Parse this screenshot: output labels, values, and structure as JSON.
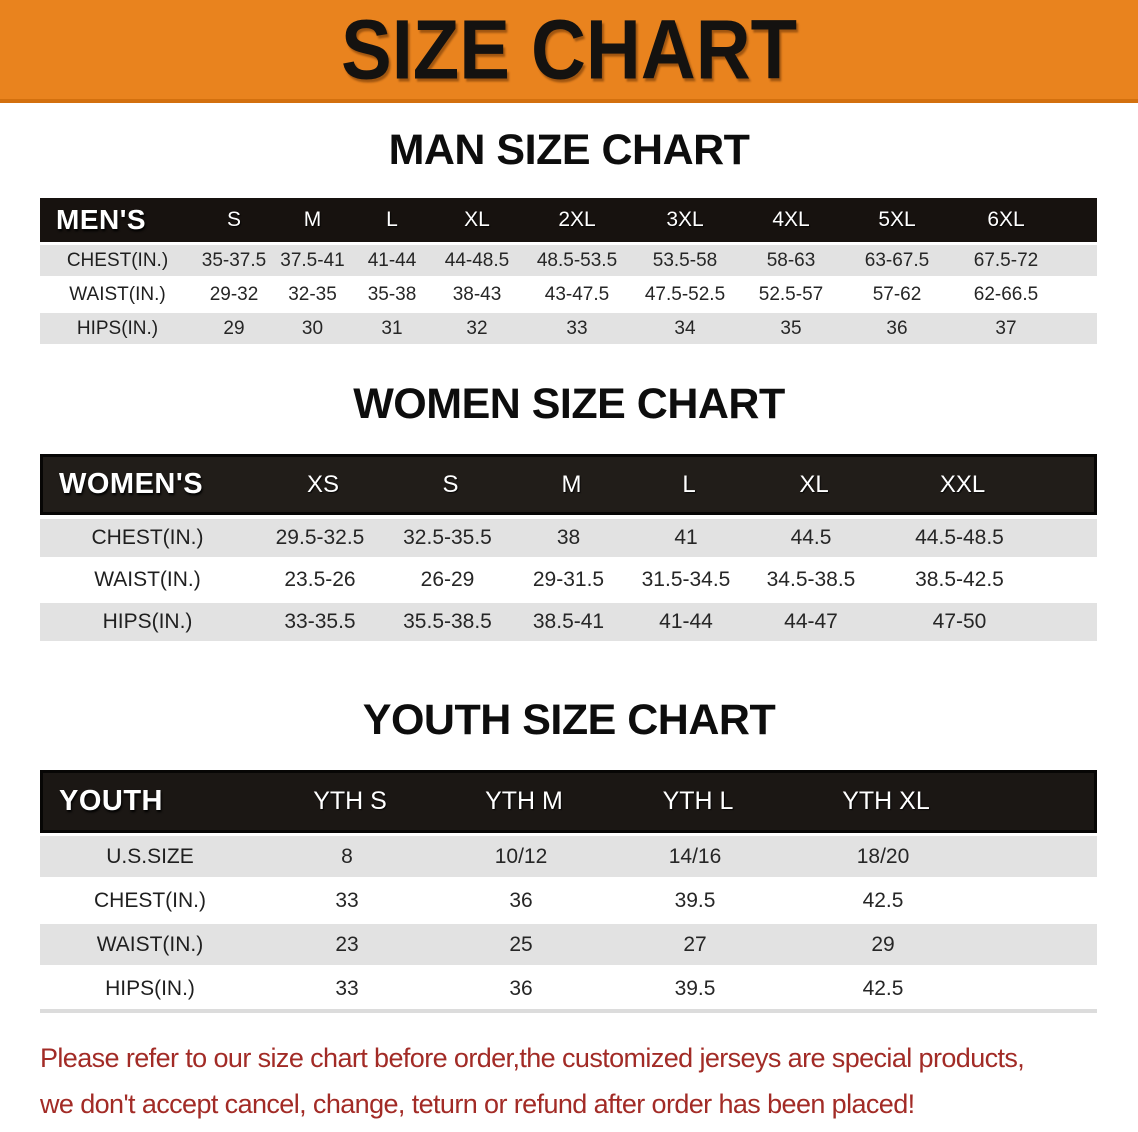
{
  "banner": {
    "title": "SIZE CHART"
  },
  "sections": [
    {
      "id": "men",
      "title": "MAN SIZE CHART",
      "header_label": "MEN'S",
      "sizes": [
        "S",
        "M",
        "L",
        "XL",
        "2XL",
        "3XL",
        "4XL",
        "5XL",
        "6XL"
      ],
      "rows": [
        {
          "label": "CHEST(IN.)",
          "values": [
            "35-37.5",
            "37.5-41",
            "41-44",
            "44-48.5",
            "48.5-53.5",
            "53.5-58",
            "58-63",
            "63-67.5",
            "67.5-72"
          ]
        },
        {
          "label": "WAIST(IN.)",
          "values": [
            "29-32",
            "32-35",
            "35-38",
            "38-43",
            "43-47.5",
            "47.5-52.5",
            "52.5-57",
            "57-62",
            "62-66.5"
          ]
        },
        {
          "label": "HIPS(IN.)",
          "values": [
            "29",
            "30",
            "31",
            "32",
            "33",
            "34",
            "35",
            "36",
            "37"
          ]
        }
      ]
    },
    {
      "id": "women",
      "title": "WOMEN SIZE CHART",
      "header_label": "WOMEN'S",
      "sizes": [
        "XS",
        "S",
        "M",
        "L",
        "XL",
        "XXL"
      ],
      "rows": [
        {
          "label": "CHEST(IN.)",
          "values": [
            "29.5-32.5",
            "32.5-35.5",
            "38",
            "41",
            "44.5",
            "44.5-48.5"
          ]
        },
        {
          "label": "WAIST(IN.)",
          "values": [
            "23.5-26",
            "26-29",
            "29-31.5",
            "31.5-34.5",
            "34.5-38.5",
            "38.5-42.5"
          ]
        },
        {
          "label": "HIPS(IN.)",
          "values": [
            "33-35.5",
            "35.5-38.5",
            "38.5-41",
            "41-44",
            "44-47",
            "47-50"
          ]
        }
      ]
    },
    {
      "id": "youth",
      "title": "YOUTH SIZE CHART",
      "header_label": "YOUTH",
      "sizes": [
        "YTH S",
        "YTH M",
        "YTH L",
        "YTH XL"
      ],
      "rows": [
        {
          "label": "U.S.SIZE",
          "values": [
            "8",
            "10/12",
            "14/16",
            "18/20"
          ]
        },
        {
          "label": "CHEST(IN.)",
          "values": [
            "33",
            "36",
            "39.5",
            "42.5"
          ]
        },
        {
          "label": "WAIST(IN.)",
          "values": [
            "23",
            "25",
            "27",
            "29"
          ]
        },
        {
          "label": "HIPS(IN.)",
          "values": [
            "33",
            "36",
            "39.5",
            "42.5"
          ]
        }
      ]
    }
  ],
  "disclaimer": {
    "line1": "Please refer to our size chart before order,the customized jerseys are special products,",
    "line2": "we don't accept cancel, change, teturn or refund after order has been placed!"
  },
  "colors": {
    "banner_orange": "#E9831E",
    "header_black": "#17120F",
    "row_gray": "#E2E2E2",
    "disclaimer_red": "#A22B26"
  }
}
